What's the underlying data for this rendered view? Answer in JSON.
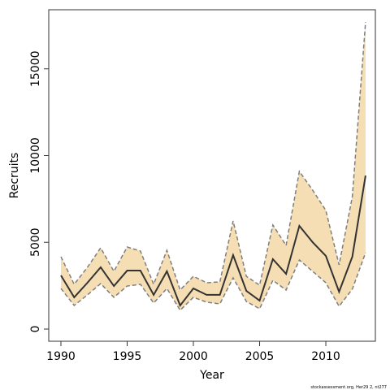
{
  "chart_data": {
    "type": "line",
    "x": [
      1990,
      1991,
      1992,
      1993,
      1994,
      1995,
      1996,
      1997,
      1998,
      1999,
      2000,
      2001,
      2002,
      2003,
      2004,
      2005,
      2006,
      2007,
      2008,
      2009,
      2010,
      2011,
      2012,
      2013
    ],
    "values": [
      3090,
      1830,
      2670,
      3560,
      2480,
      3370,
      3370,
      1970,
      3330,
      1360,
      2340,
      1970,
      1970,
      4260,
      2200,
      1640,
      4030,
      3180,
      5950,
      5010,
      4220,
      2150,
      4170,
      8850
    ],
    "upper": [
      4170,
      2580,
      3560,
      4680,
      3330,
      4730,
      4500,
      2580,
      4540,
      2250,
      3040,
      2670,
      2720,
      6230,
      3040,
      2530,
      6000,
      4820,
      9090,
      8010,
      6840,
      3700,
      7630,
      17700
    ],
    "lower": [
      2340,
      1360,
      1970,
      2620,
      1830,
      2480,
      2580,
      1500,
      2340,
      1080,
      1830,
      1550,
      1450,
      2950,
      1590,
      1170,
      2810,
      2250,
      3980,
      3330,
      2670,
      1310,
      2300,
      4400
    ],
    "line_color": "#333333",
    "band_color": "#f5deb3",
    "bound_color": "#7f7f7f",
    "xlabel": "Year",
    "ylabel": "Recruits",
    "xlim": [
      1989.08,
      2013.74
    ],
    "ylim": [
      -703,
      18407
    ],
    "xticks": [
      1990,
      1995,
      2000,
      2005,
      2010
    ],
    "yticks": [
      0,
      5000,
      10000,
      15000
    ],
    "grid": false,
    "footnote": "stockassessment.org, Her29 2, nt277"
  }
}
